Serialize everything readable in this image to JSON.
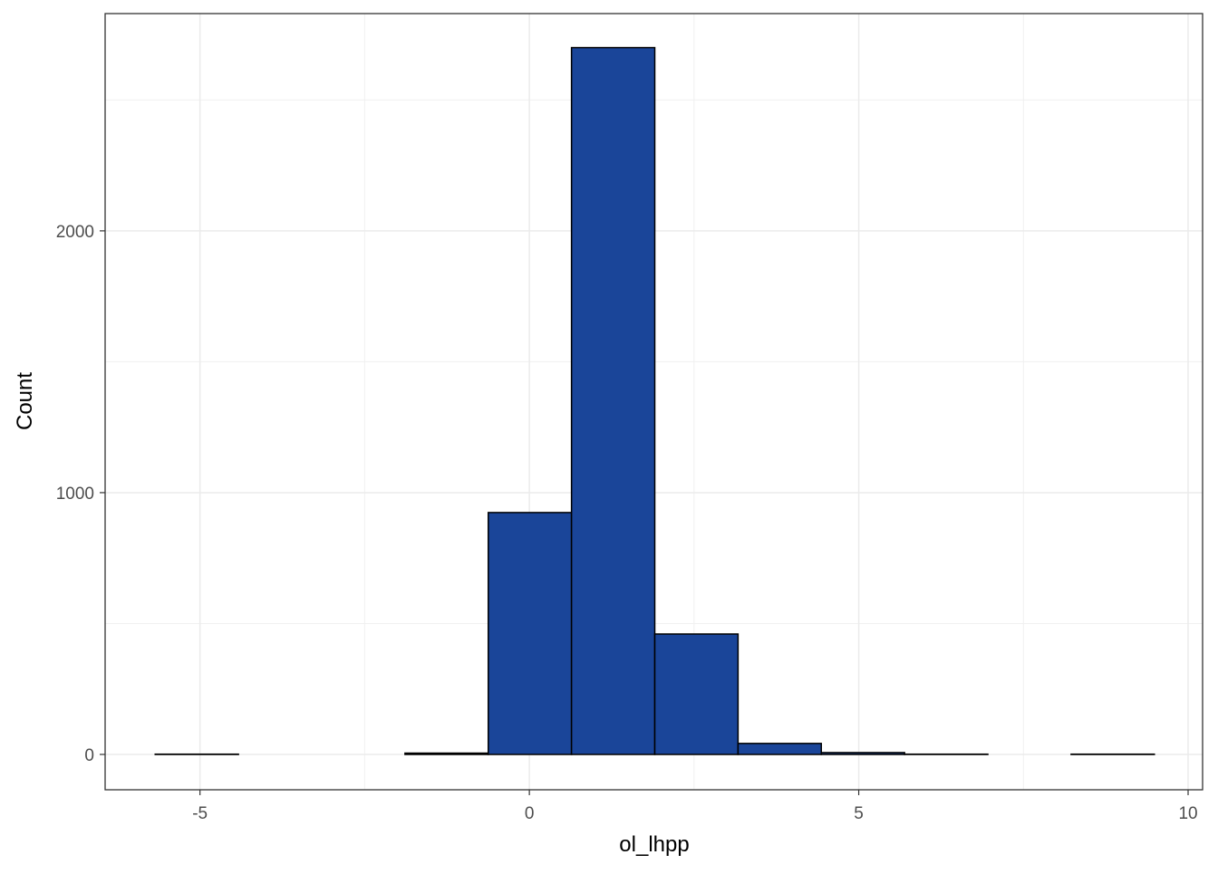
{
  "chart_data": {
    "type": "histogram",
    "x_label": "ol_lhpp",
    "y_label": "Count",
    "bins": [
      -5.68,
      -4.416,
      -3.152,
      -1.888,
      -0.624,
      0.64,
      1.904,
      3.168,
      4.432,
      5.696,
      6.96,
      8.224,
      9.488
    ],
    "counts": [
      1,
      0,
      0,
      5,
      924,
      2700,
      460,
      42,
      7,
      1,
      0,
      1
    ],
    "color": "#1a4599",
    "edge_color": "#000000",
    "xlim": [
      -6.44,
      10.22
    ],
    "xticks": [
      -5,
      0,
      5,
      10
    ],
    "ylim": [
      -135,
      2830
    ],
    "yticks": [
      0,
      1000,
      2000
    ],
    "grid": true,
    "x_minor_grid": [
      -2.5,
      2.5,
      7.5
    ],
    "y_minor_grid": [
      500,
      1500,
      2500
    ]
  }
}
